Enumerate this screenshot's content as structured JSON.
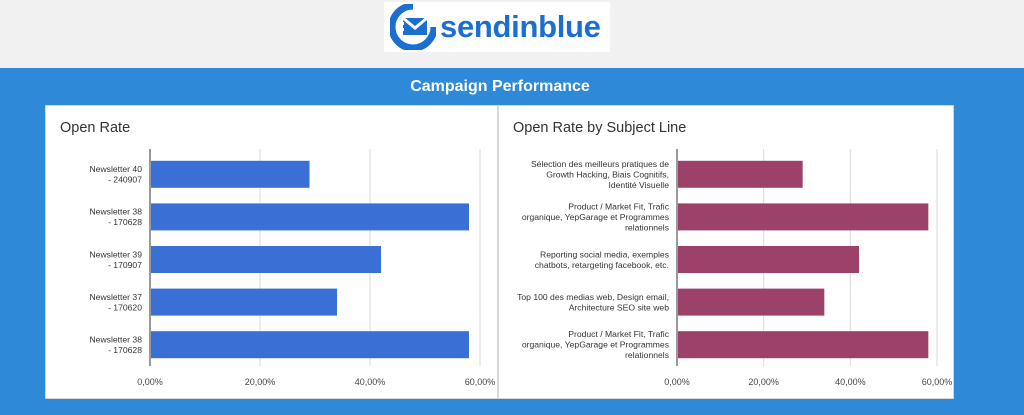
{
  "header": {
    "logo_text": "sendinblue",
    "title": "Campaign Performance"
  },
  "colors": {
    "background_blue": "#2e8ad8",
    "series_left": "#3a6fd6",
    "series_right": "#9c426a"
  },
  "chart_data": [
    {
      "type": "bar",
      "orientation": "horizontal",
      "title": "Open Rate",
      "categories": [
        "Newsletter 40 - 240907",
        "Newsletter 38 - 170628",
        "Newsletter 39 - 170907",
        "Newsletter 37 - 170620",
        "Newsletter 38 - 170628"
      ],
      "values": [
        29,
        58,
        42,
        34,
        58
      ],
      "xlim": [
        0,
        60
      ],
      "ticks": [
        "0,00%",
        "20,00%",
        "40,00%",
        "60,00%"
      ],
      "grid": true
    },
    {
      "type": "bar",
      "orientation": "horizontal",
      "title": "Open Rate by Subject Line",
      "categories": [
        "Sélection des meilleurs pratiques de Growth Hacking, Biais Cognitifs, Identité Visuelle",
        "Product / Market Fit, Trafic organique, YepGarage et Programmes relationnels",
        "Reporting social media, exemples chatbots, retargeting facebook, etc.",
        "Top 100 des medias web, Design email, Architecture SEO site web",
        "Product / Market Fit, Trafic organique, YepGarage et Programmes relationnels"
      ],
      "values": [
        29,
        58,
        42,
        34,
        58
      ],
      "xlim": [
        0,
        60
      ],
      "ticks": [
        "0,00%",
        "20,00%",
        "40,00%",
        "60,00%"
      ],
      "grid": true
    }
  ]
}
